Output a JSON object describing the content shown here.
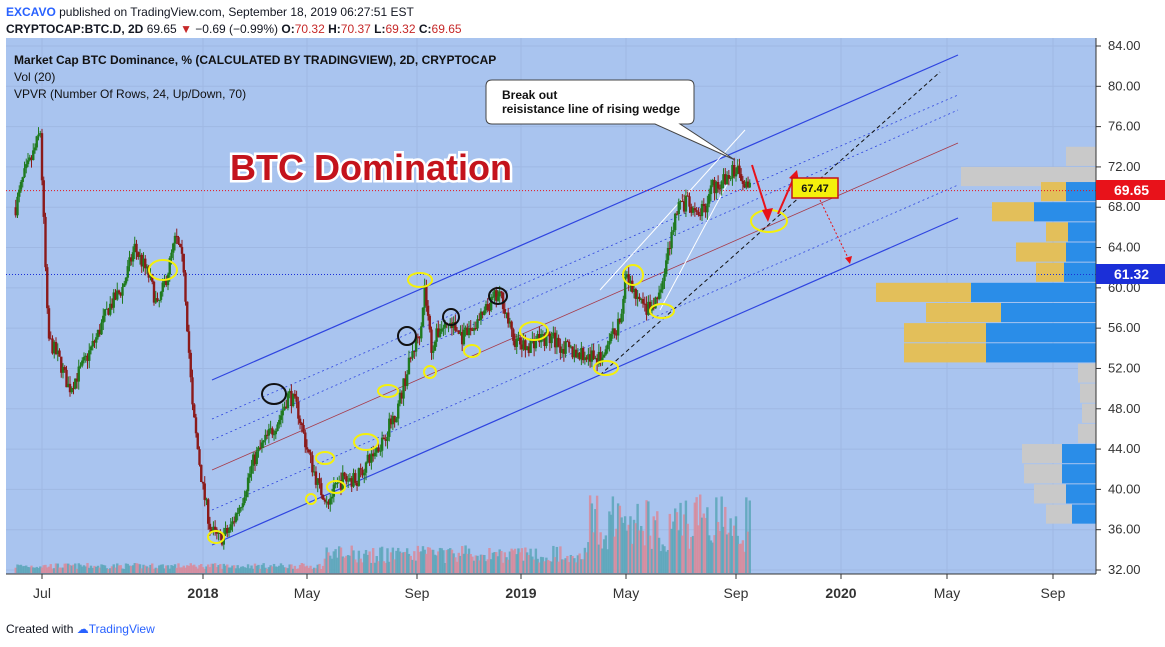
{
  "header": {
    "publisher": "EXCAVO",
    "published_text": " published on TradingView.com, September 18, 2019 06:27:51 EST",
    "symbol_line": "CRYPTOCAP:BTC.D, 2D",
    "last": "69.65",
    "change": "−0.69 (−0.99%)",
    "o_label": "O:",
    "o": "70.32",
    "h_label": "H:",
    "h": "70.37",
    "l_label": "L:",
    "l": "69.32",
    "c_label": "C:",
    "c": "69.65"
  },
  "legend": {
    "line1": "Market Cap BTC Dominance, % (CALCULATED BY TRADINGVIEW), 2D, CRYPTOCAP",
    "line2": "Vol (20)",
    "line3": "VPVR (Number Of Rows, 24, Up/Down, 70)"
  },
  "annotations": {
    "big_title": "BTC Domination",
    "callout_line1": "Break out",
    "callout_line2": "reisistance line of rising wedge",
    "target_label": "67.47",
    "price_tag_current": "69.65",
    "price_tag_level": "61.32"
  },
  "footer": {
    "created_with": "Created with",
    "brand": "TradingView"
  },
  "colors": {
    "plot_bg": "#a9c4ef",
    "up": "#1f7a1f",
    "down": "#8b1a1a",
    "channel": "#2f45e0",
    "current_price": "#e8121a",
    "level_line": "#1b2fd8",
    "vp_up": "#2a8de8",
    "vp_down": "#e3bf5a",
    "vp_value_area_grey": "#c9c9c9",
    "annotation_yellow": "#f4f00c",
    "title_red": "#c4131c"
  },
  "chart_data": {
    "type": "candlestick",
    "y_axis": {
      "ticks": [
        "84.00",
        "80.00",
        "76.00",
        "72.00",
        "68.00",
        "64.00",
        "60.00",
        "56.00",
        "52.00",
        "48.00",
        "44.00",
        "40.00",
        "36.00",
        "32.00"
      ],
      "range": [
        32,
        84
      ],
      "scale": "linear",
      "position": "right"
    },
    "x_axis": {
      "ticks": [
        "Jul",
        "2018",
        "May",
        "Sep",
        "2019",
        "May",
        "Sep",
        "2020",
        "May",
        "Sep"
      ]
    },
    "approx_series": {
      "name": "BTC.D",
      "points": [
        [
          "2017-06-01",
          68
        ],
        [
          "2017-06-10",
          71
        ],
        [
          "2017-06-20",
          73
        ],
        [
          "2017-06-29",
          75.5
        ],
        [
          "2017-07-08",
          55
        ],
        [
          "2017-07-20",
          53
        ],
        [
          "2017-08-01",
          50
        ],
        [
          "2017-08-15",
          52
        ],
        [
          "2017-09-01",
          55
        ],
        [
          "2017-09-15",
          58
        ],
        [
          "2017-10-01",
          60
        ],
        [
          "2017-10-15",
          64
        ],
        [
          "2017-11-01",
          61
        ],
        [
          "2017-11-10",
          58
        ],
        [
          "2017-11-20",
          61
        ],
        [
          "2017-12-01",
          65
        ],
        [
          "2017-12-10",
          62
        ],
        [
          "2017-12-20",
          48
        ],
        [
          "2018-01-01",
          40
        ],
        [
          "2018-01-10",
          36
        ],
        [
          "2018-01-20",
          35
        ],
        [
          "2018-02-01",
          36
        ],
        [
          "2018-02-15",
          39
        ],
        [
          "2018-03-01",
          43
        ],
        [
          "2018-03-15",
          45
        ],
        [
          "2018-03-30",
          47
        ],
        [
          "2018-04-10",
          49.5
        ],
        [
          "2018-04-20",
          48
        ],
        [
          "2018-05-01",
          44
        ],
        [
          "2018-05-15",
          40
        ],
        [
          "2018-05-25",
          39
        ],
        [
          "2018-06-10",
          41
        ],
        [
          "2018-06-25",
          41
        ],
        [
          "2018-07-10",
          43
        ],
        [
          "2018-07-25",
          45
        ],
        [
          "2018-08-10",
          48
        ],
        [
          "2018-08-25",
          53
        ],
        [
          "2018-09-05",
          56
        ],
        [
          "2018-09-10",
          60
        ],
        [
          "2018-09-18",
          54
        ],
        [
          "2018-09-28",
          56
        ],
        [
          "2018-10-10",
          56.5
        ],
        [
          "2018-10-25",
          55
        ],
        [
          "2018-11-05",
          56
        ],
        [
          "2018-11-20",
          57.5
        ],
        [
          "2018-12-01",
          59
        ],
        [
          "2018-12-10",
          59
        ],
        [
          "2018-12-22",
          55
        ],
        [
          "2019-01-05",
          54
        ],
        [
          "2019-01-20",
          55
        ],
        [
          "2019-02-05",
          55
        ],
        [
          "2019-02-20",
          54
        ],
        [
          "2019-03-05",
          53.5
        ],
        [
          "2019-03-25",
          53
        ],
        [
          "2019-04-05",
          53
        ],
        [
          "2019-04-15",
          55
        ],
        [
          "2019-04-25",
          57
        ],
        [
          "2019-05-01",
          61
        ],
        [
          "2019-05-10",
          59.5
        ],
        [
          "2019-05-20",
          58
        ],
        [
          "2019-06-01",
          58
        ],
        [
          "2019-06-10",
          60
        ],
        [
          "2019-06-20",
          65
        ],
        [
          "2019-06-27",
          68
        ],
        [
          "2019-07-08",
          68.5
        ],
        [
          "2019-07-18",
          67
        ],
        [
          "2019-07-28",
          68
        ],
        [
          "2019-08-05",
          70
        ],
        [
          "2019-08-15",
          70.5
        ],
        [
          "2019-08-25",
          71
        ],
        [
          "2019-09-01",
          72
        ],
        [
          "2019-09-08",
          71
        ],
        [
          "2019-09-14",
          70.3
        ],
        [
          "2019-09-18",
          69.65
        ]
      ]
    },
    "horizontal_lines": [
      {
        "label": "69.65",
        "value": 69.65
      },
      {
        "label": "61.32",
        "value": 61.32
      }
    ]
  }
}
